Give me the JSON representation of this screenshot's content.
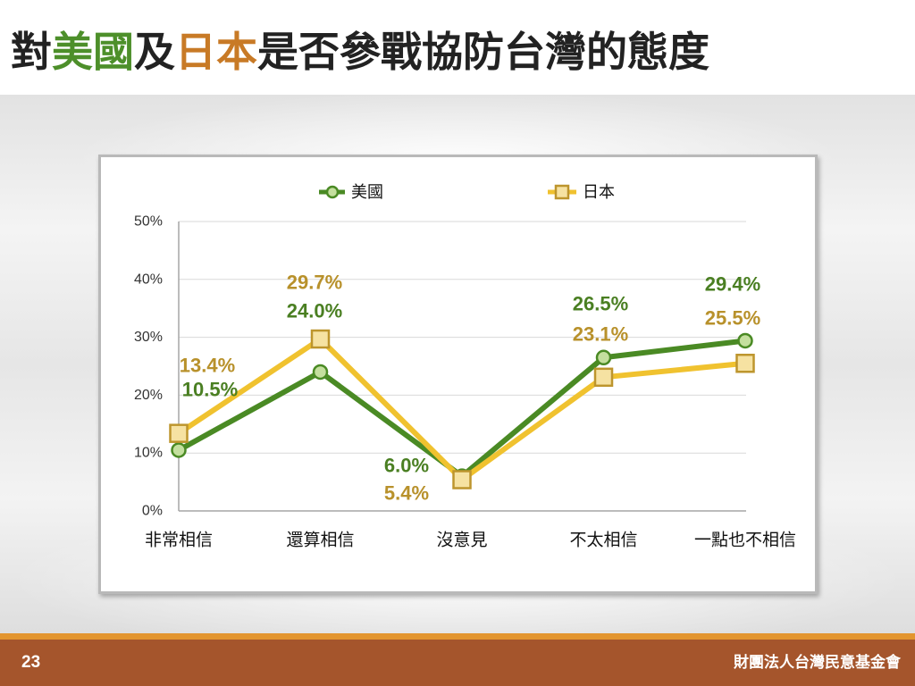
{
  "title": {
    "parts": [
      {
        "text": "對",
        "color": "#222222"
      },
      {
        "text": "美國",
        "color": "#4d8f2a"
      },
      {
        "text": "及",
        "color": "#222222"
      },
      {
        "text": "日本",
        "color": "#c87a26"
      },
      {
        "text": "是否參戰協防台灣的態度",
        "color": "#222222"
      }
    ]
  },
  "chart_data": {
    "type": "line",
    "categories": [
      "非常相信",
      "還算相信",
      "沒意見",
      "不太相信",
      "一點也不相信"
    ],
    "series": [
      {
        "name": "美國",
        "values": [
          10.5,
          24.0,
          6.0,
          26.5,
          29.4
        ],
        "labels": [
          "10.5%",
          "24.0%",
          "6.0%",
          "26.5%",
          "29.4%"
        ],
        "color": "#4a8a24",
        "marker": "circle",
        "marker_fill": "#c4df9e",
        "marker_stroke": "#4a8a24",
        "label_color": "#4a7f22"
      },
      {
        "name": "日本",
        "values": [
          13.4,
          29.7,
          5.4,
          23.1,
          25.5
        ],
        "labels": [
          "13.4%",
          "29.7%",
          "5.4%",
          "23.1%",
          "25.5%"
        ],
        "color": "#f0c22f",
        "marker": "square",
        "marker_fill": "#f6e2a2",
        "marker_stroke": "#bd952d",
        "label_color": "#b8912b"
      }
    ],
    "ylim": [
      0,
      50
    ],
    "yticks": [
      0,
      10,
      20,
      30,
      40,
      50
    ],
    "ytick_labels": [
      "0%",
      "10%",
      "20%",
      "30%",
      "40%",
      "50%"
    ],
    "grid": true,
    "legend_position": "top"
  },
  "footer": {
    "page_number": "23",
    "organization": "財團法人台灣民意基金會",
    "bar_color": "#a5552c",
    "stripe_color": "#e3952f"
  }
}
